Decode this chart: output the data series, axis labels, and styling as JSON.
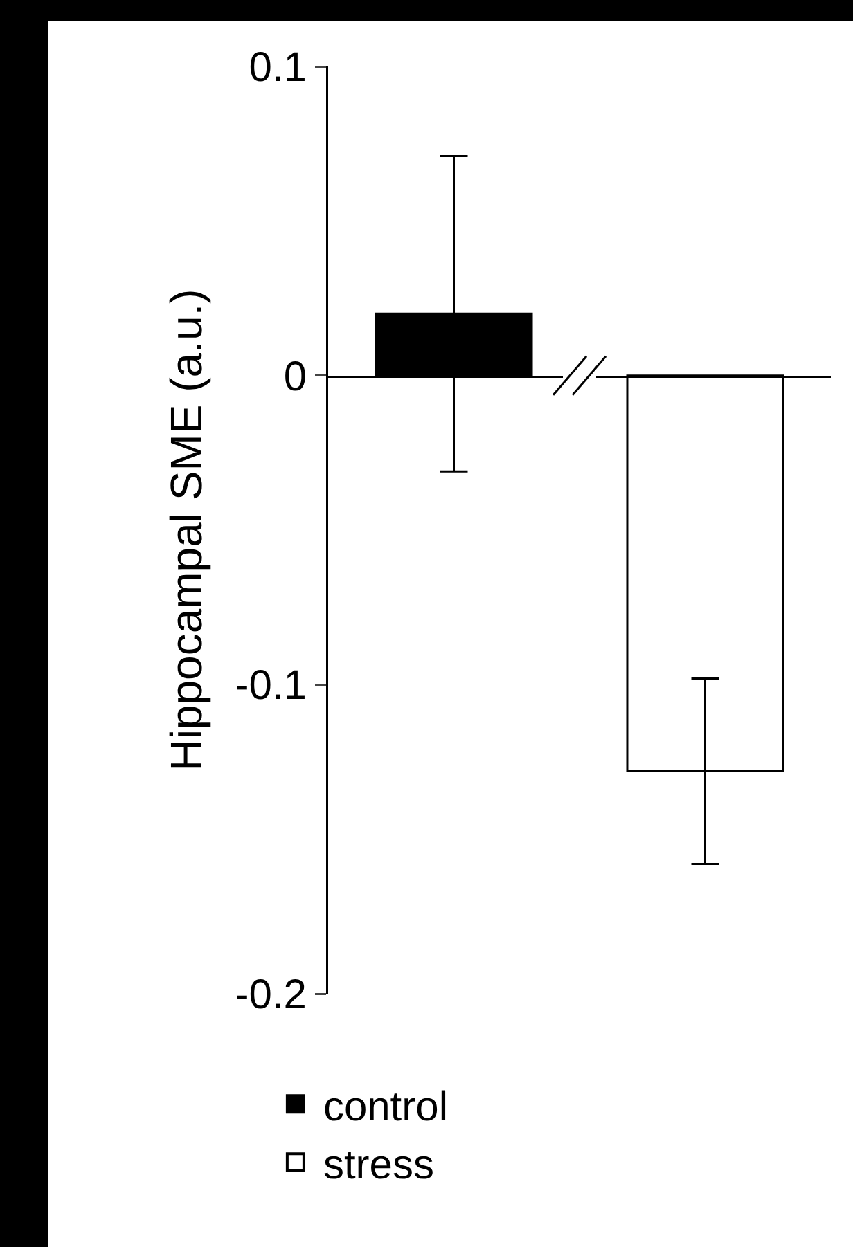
{
  "chart_data": {
    "type": "bar",
    "ylabel": "Hippocampal SME (a.u.)",
    "categories": [
      null,
      null
    ],
    "series": [
      {
        "name": "control",
        "color": "#000000",
        "values": [
          0.02,
          null
        ],
        "errors": [
          0.051,
          null
        ]
      },
      {
        "name": "stress",
        "color": "#ffffff",
        "values": [
          null,
          -0.128
        ],
        "errors": [
          null,
          0.03
        ]
      }
    ],
    "ylim": [
      -0.2,
      0.1
    ],
    "yticks": [
      0.1,
      0,
      {
        "value": -0.1,
        "label": "-0.1"
      },
      {
        "value": -0.2,
        "label": "-0.2"
      }
    ],
    "tick_labels": "y",
    "legend": "bottom left"
  }
}
